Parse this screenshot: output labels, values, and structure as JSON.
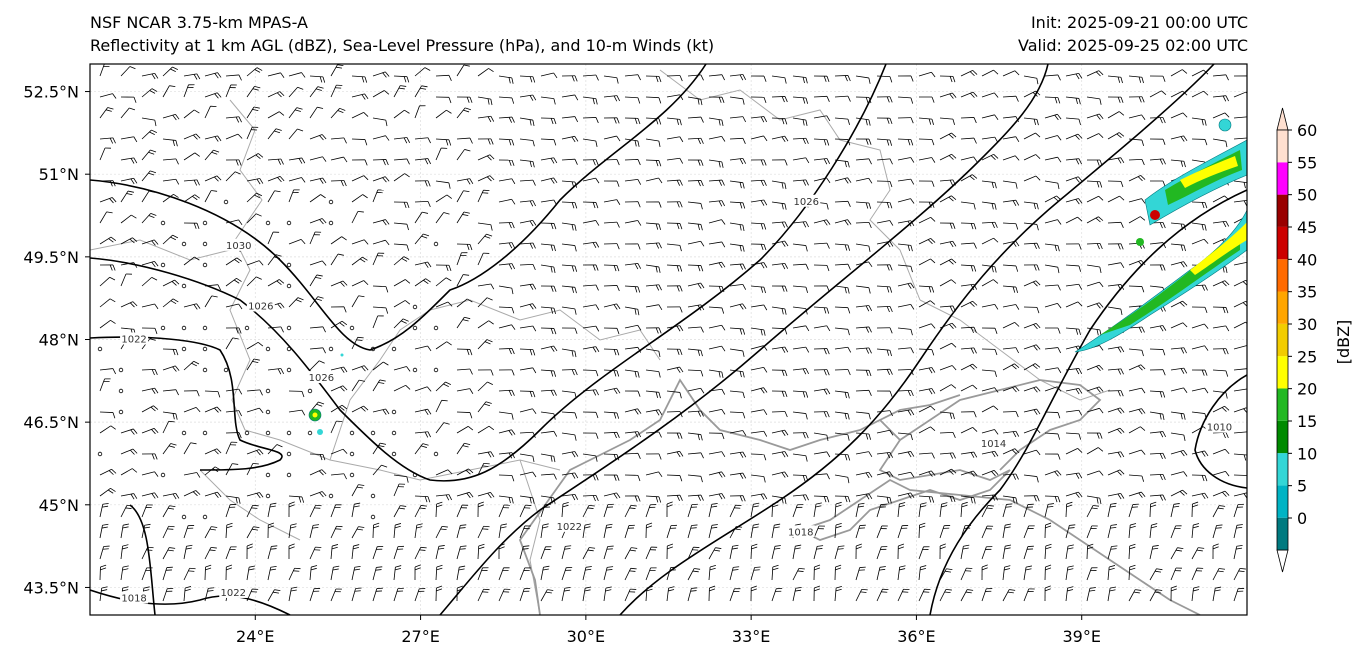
{
  "header": {
    "model": "NSF NCAR 3.75-km MPAS-A",
    "fields": "Reflectivity at 1 km AGL (dBZ), Sea-Level Pressure (hPa), and 10-m Winds (kt)",
    "init": "Init: 2025-09-21 00:00 UTC",
    "valid": "Valid: 2025-09-25 02:00 UTC"
  },
  "map": {
    "lat_labels": [
      "52.5°N",
      "51°N",
      "49.5°N",
      "48°N",
      "46.5°N",
      "45°N",
      "43.5°N"
    ],
    "lat_values": [
      52.5,
      51,
      49.5,
      48,
      46.5,
      45,
      43.5
    ],
    "lon_labels": [
      "24°E",
      "27°E",
      "30°E",
      "33°E",
      "36°E",
      "39°E"
    ],
    "lon_values": [
      24,
      27,
      30,
      33,
      36,
      39
    ],
    "extent": {
      "lon_min": 21,
      "lon_max": 42,
      "lat_min": 43,
      "lat_max": 53
    },
    "isobar_labels": [
      {
        "text": "1030",
        "lon": 23.7,
        "lat": 49.7
      },
      {
        "text": "1026",
        "lon": 24.1,
        "lat": 48.6
      },
      {
        "text": "1022",
        "lon": 21.8,
        "lat": 48.0
      },
      {
        "text": "1026",
        "lon": 25.2,
        "lat": 47.3
      },
      {
        "text": "1026",
        "lon": 34.0,
        "lat": 50.5
      },
      {
        "text": "1022",
        "lon": 29.7,
        "lat": 44.6
      },
      {
        "text": "1018",
        "lon": 33.9,
        "lat": 44.5
      },
      {
        "text": "1014",
        "lon": 37.4,
        "lat": 46.1
      },
      {
        "text": "1010",
        "lon": 41.5,
        "lat": 46.4
      },
      {
        "text": "1022",
        "lon": 23.6,
        "lat": 43.4
      },
      {
        "text": "1018",
        "lon": 21.8,
        "lat": 43.3
      }
    ]
  },
  "colorbar": {
    "label": "[dBZ]",
    "ticks": [
      "0",
      "5",
      "10",
      "15",
      "20",
      "25",
      "30",
      "35",
      "40",
      "45",
      "50",
      "55",
      "60"
    ],
    "colors": [
      "#007a80",
      "#00b3c4",
      "#33d6d6",
      "#008a00",
      "#22b822",
      "#ffff00",
      "#f2cc00",
      "#ffa500",
      "#ff6a00",
      "#cc0000",
      "#990000",
      "#ff00ff",
      "#ffe0d0"
    ]
  }
}
